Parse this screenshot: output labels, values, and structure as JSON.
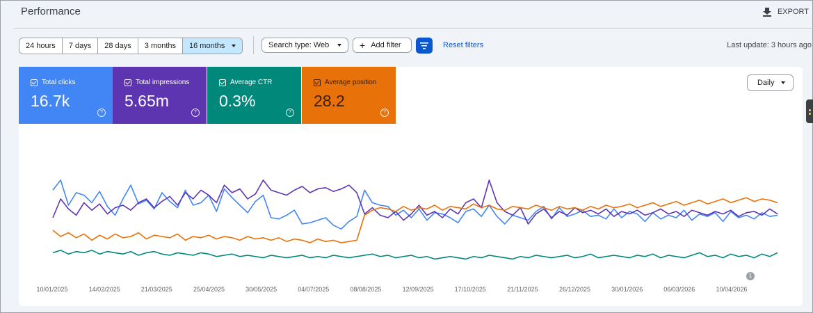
{
  "header": {
    "title": "Performance",
    "export_label": "EXPORT"
  },
  "date_ranges": [
    {
      "label": "24 hours"
    },
    {
      "label": "7 days"
    },
    {
      "label": "28 days"
    },
    {
      "label": "3 months"
    },
    {
      "label": "16 months",
      "selected": true
    }
  ],
  "filters": {
    "search_type": "Search type: Web",
    "add_filter": "Add filter",
    "reset": "Reset filters",
    "last_update": "Last update: 3 hours ago"
  },
  "metrics": [
    {
      "label": "Total clicks",
      "value": "16.7k",
      "color": "#4285f4",
      "checked": true
    },
    {
      "label": "Total impressions",
      "value": "5.65m",
      "color": "#5e35b1",
      "checked": true
    },
    {
      "label": "Average CTR",
      "value": "0.3%",
      "color": "#00897b",
      "checked": true
    },
    {
      "label": "Average position",
      "value": "28.2",
      "color": "#e8710a",
      "checked": true
    }
  ],
  "granularity": "Daily",
  "annotation_marker": "1",
  "chart_data": {
    "type": "line",
    "x_tick_labels": [
      "10/01/2025",
      "14/02/2025",
      "21/03/2025",
      "25/04/2025",
      "30/05/2025",
      "04/07/2025",
      "08/08/2025",
      "12/09/2025",
      "17/10/2025",
      "21/11/2025",
      "26/12/2025",
      "30/01/2026",
      "06/03/2026",
      "10/04/2026"
    ],
    "grid": false,
    "legend": "none",
    "series": [
      {
        "name": "Total clicks",
        "color": "#4285f4",
        "values": [
          0.62,
          0.7,
          0.5,
          0.6,
          0.58,
          0.52,
          0.61,
          0.49,
          0.42,
          0.55,
          0.66,
          0.51,
          0.54,
          0.47,
          0.6,
          0.53,
          0.48,
          0.62,
          0.5,
          0.52,
          0.58,
          0.45,
          0.63,
          0.56,
          0.5,
          0.44,
          0.53,
          0.58,
          0.4,
          0.39,
          0.42,
          0.46,
          0.35,
          0.36,
          0.38,
          0.4,
          0.34,
          0.31,
          0.37,
          0.41,
          0.62,
          0.52,
          0.5,
          0.49,
          0.42,
          0.46,
          0.4,
          0.47,
          0.38,
          0.44,
          0.43,
          0.4,
          0.36,
          0.45,
          0.47,
          0.41,
          0.5,
          0.41,
          0.35,
          0.42,
          0.4,
          0.38,
          0.45,
          0.49,
          0.39,
          0.48,
          0.41,
          0.43,
          0.46,
          0.41,
          0.42,
          0.39,
          0.47,
          0.4,
          0.45,
          0.43,
          0.37,
          0.44,
          0.39,
          0.42,
          0.4,
          0.46,
          0.38,
          0.43,
          0.41,
          0.44,
          0.37,
          0.45,
          0.4,
          0.42,
          0.39,
          0.44,
          0.41,
          0.42
        ]
      },
      {
        "name": "Total impressions",
        "color": "#5e35b1",
        "values": [
          0.4,
          0.55,
          0.47,
          0.42,
          0.52,
          0.46,
          0.51,
          0.43,
          0.48,
          0.5,
          0.46,
          0.52,
          0.55,
          0.48,
          0.53,
          0.57,
          0.5,
          0.6,
          0.55,
          0.62,
          0.58,
          0.52,
          0.66,
          0.6,
          0.63,
          0.55,
          0.59,
          0.7,
          0.62,
          0.6,
          0.58,
          0.62,
          0.65,
          0.6,
          0.63,
          0.64,
          0.61,
          0.63,
          0.66,
          0.6,
          0.43,
          0.48,
          0.42,
          0.4,
          0.45,
          0.38,
          0.43,
          0.5,
          0.42,
          0.45,
          0.4,
          0.47,
          0.43,
          0.52,
          0.55,
          0.48,
          0.7,
          0.52,
          0.45,
          0.42,
          0.48,
          0.35,
          0.43,
          0.47,
          0.4,
          0.45,
          0.42,
          0.48,
          0.44,
          0.46,
          0.43,
          0.47,
          0.41,
          0.45,
          0.43,
          0.46,
          0.42,
          0.44,
          0.47,
          0.43,
          0.45,
          0.41,
          0.46,
          0.44,
          0.42,
          0.45,
          0.43,
          0.46,
          0.41,
          0.44,
          0.45,
          0.42,
          0.47,
          0.43
        ]
      },
      {
        "name": "Average position",
        "color": "#e8710a",
        "values": [
          0.3,
          0.25,
          0.28,
          0.24,
          0.27,
          0.22,
          0.26,
          0.23,
          0.27,
          0.24,
          0.25,
          0.28,
          0.23,
          0.26,
          0.25,
          0.24,
          0.27,
          0.22,
          0.25,
          0.24,
          0.26,
          0.23,
          0.25,
          0.24,
          0.22,
          0.25,
          0.23,
          0.24,
          0.22,
          0.24,
          0.21,
          0.23,
          0.22,
          0.2,
          0.23,
          0.21,
          0.22,
          0.2,
          0.21,
          0.22,
          0.42,
          0.46,
          0.48,
          0.47,
          0.45,
          0.49,
          0.46,
          0.48,
          0.47,
          0.5,
          0.46,
          0.49,
          0.48,
          0.47,
          0.51,
          0.48,
          0.5,
          0.47,
          0.46,
          0.49,
          0.48,
          0.47,
          0.5,
          0.48,
          0.46,
          0.49,
          0.47,
          0.48,
          0.46,
          0.49,
          0.47,
          0.5,
          0.48,
          0.49,
          0.51,
          0.48,
          0.5,
          0.52,
          0.49,
          0.51,
          0.53,
          0.5,
          0.52,
          0.54,
          0.51,
          0.53,
          0.55,
          0.52,
          0.54,
          0.56,
          0.53,
          0.55,
          0.54,
          0.52
        ]
      },
      {
        "name": "Average CTR",
        "color": "#00897b",
        "values": [
          0.12,
          0.14,
          0.11,
          0.13,
          0.12,
          0.14,
          0.11,
          0.13,
          0.12,
          0.11,
          0.13,
          0.1,
          0.12,
          0.13,
          0.11,
          0.1,
          0.12,
          0.11,
          0.1,
          0.12,
          0.11,
          0.09,
          0.1,
          0.11,
          0.09,
          0.1,
          0.09,
          0.08,
          0.1,
          0.09,
          0.08,
          0.09,
          0.1,
          0.08,
          0.09,
          0.08,
          0.1,
          0.09,
          0.08,
          0.09,
          0.1,
          0.11,
          0.09,
          0.1,
          0.08,
          0.09,
          0.1,
          0.08,
          0.09,
          0.07,
          0.08,
          0.09,
          0.08,
          0.07,
          0.09,
          0.08,
          0.1,
          0.09,
          0.08,
          0.07,
          0.09,
          0.08,
          0.1,
          0.09,
          0.08,
          0.09,
          0.1,
          0.08,
          0.09,
          0.11,
          0.08,
          0.09,
          0.1,
          0.09,
          0.08,
          0.1,
          0.09,
          0.11,
          0.08,
          0.1,
          0.09,
          0.08,
          0.1,
          0.12,
          0.09,
          0.1,
          0.08,
          0.11,
          0.09,
          0.1,
          0.08,
          0.11,
          0.09,
          0.12
        ]
      }
    ]
  }
}
